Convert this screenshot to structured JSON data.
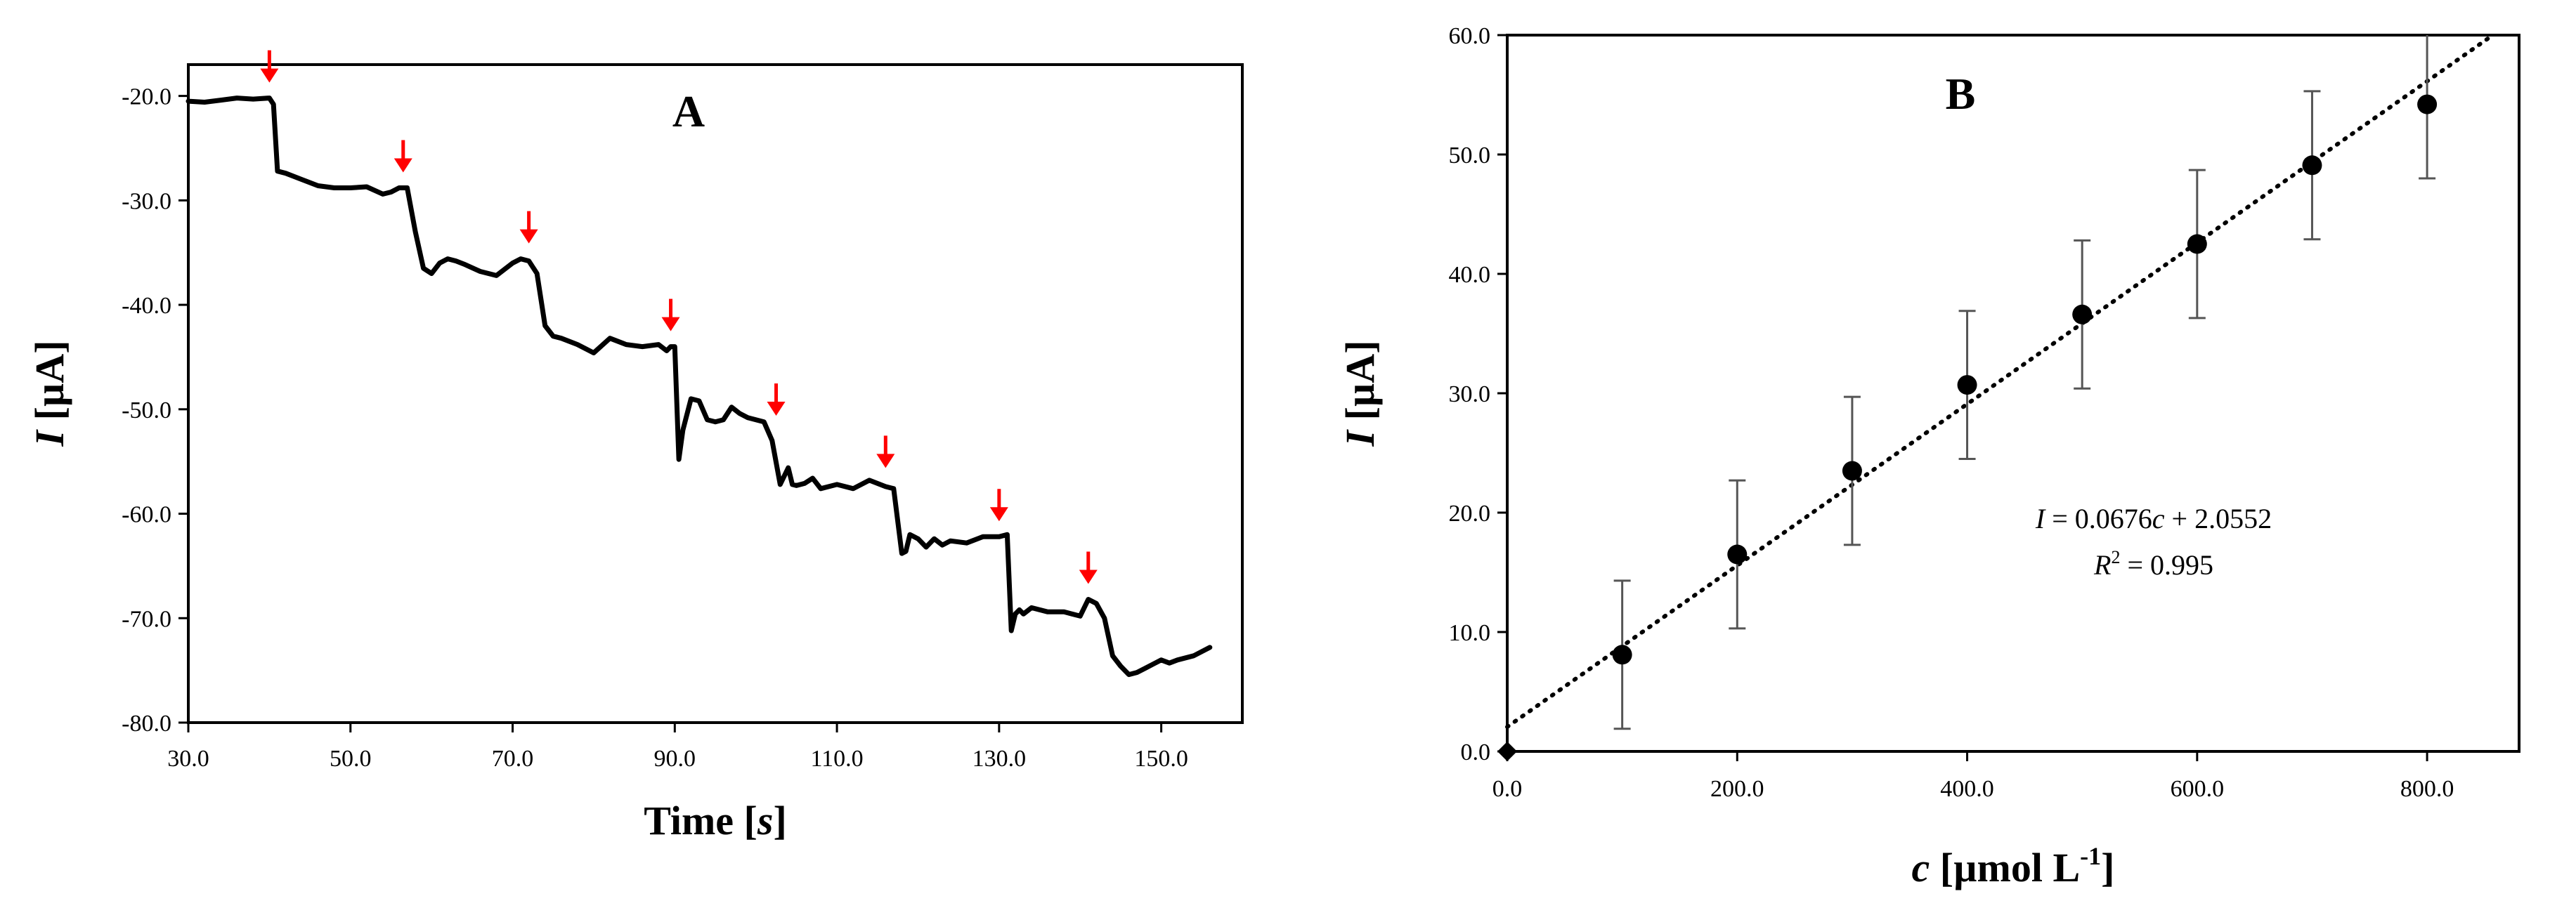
{
  "chart_data": [
    {
      "type": "line",
      "panel_label": "A",
      "xlabel": {
        "main": "Time [",
        "italic": "s",
        "tail": "]"
      },
      "ylabel": {
        "italic": "I",
        "tail": " [µA]"
      },
      "xlim": [
        30,
        160
      ],
      "ylim": [
        -80,
        -17
      ],
      "xticks": [
        "30.0",
        "50.0",
        "70.0",
        "90.0",
        "110.0",
        "130.0",
        "150.0"
      ],
      "yticks": [
        "-20.0",
        "-30.0",
        "-40.0",
        "-50.0",
        "-60.0",
        "-70.0",
        "-80.0"
      ],
      "line_color": "#000000",
      "arrow_color": "#ff0000",
      "series": [
        {
          "x": [
            30,
            32,
            34,
            36,
            38,
            40,
            40.5,
            41,
            42,
            44,
            46,
            48,
            50,
            52,
            54,
            55,
            56,
            57,
            58,
            59,
            60,
            61,
            62,
            63,
            64,
            66,
            68,
            70,
            71,
            72,
            73,
            74,
            75,
            76,
            78,
            80,
            82,
            84,
            86,
            88,
            89,
            89.5,
            90,
            90.5,
            91,
            92,
            93,
            94,
            95,
            96,
            97,
            98,
            99,
            100,
            101,
            102,
            103,
            104,
            104.5,
            105,
            106,
            107,
            108,
            110,
            112,
            114,
            116,
            117,
            118,
            118.5,
            119,
            120,
            121,
            122,
            123,
            124,
            126,
            128,
            130,
            131,
            131.5,
            132,
            132.5,
            133,
            134,
            136,
            138,
            140,
            141,
            142,
            143,
            144,
            145,
            146,
            147,
            148,
            149,
            150,
            151,
            152,
            154,
            156
          ],
          "y": [
            -20.5,
            -20.6,
            -20.4,
            -20.2,
            -20.3,
            -20.2,
            -20.8,
            -27.2,
            -27.4,
            -28.0,
            -28.6,
            -28.8,
            -28.8,
            -28.7,
            -29.4,
            -29.2,
            -28.8,
            -28.8,
            -33.0,
            -36.5,
            -37.0,
            -36.0,
            -35.6,
            -35.8,
            -36.1,
            -36.8,
            -37.2,
            -36.0,
            -35.6,
            -35.8,
            -37.0,
            -42.0,
            -43.0,
            -43.2,
            -43.8,
            -44.6,
            -43.2,
            -43.8,
            -44.0,
            -43.8,
            -44.4,
            -44.0,
            -44.0,
            -54.8,
            -52.0,
            -49.0,
            -49.2,
            -51.0,
            -51.2,
            -51.0,
            -49.8,
            -50.4,
            -50.8,
            -51.0,
            -51.2,
            -53.0,
            -57.2,
            -55.6,
            -57.2,
            -57.3,
            -57.1,
            -56.6,
            -57.6,
            -57.2,
            -57.6,
            -56.8,
            -57.4,
            -57.6,
            -63.8,
            -63.6,
            -62.0,
            -62.4,
            -63.2,
            -62.4,
            -63.0,
            -62.6,
            -62.8,
            -62.2,
            -62.2,
            -62.0,
            -71.2,
            -69.6,
            -69.2,
            -69.6,
            -69.0,
            -69.4,
            -69.4,
            -69.8,
            -68.2,
            -68.6,
            -70.0,
            -73.6,
            -74.6,
            -75.4,
            -75.2,
            -74.8,
            -74.4,
            -74.0,
            -74.3,
            -74.0,
            -73.6,
            -72.8
          ]
        }
      ],
      "arrows_x": [
        40,
        56.5,
        72,
        89.5,
        102.5,
        116,
        130,
        141
      ]
    },
    {
      "type": "scatter",
      "panel_label": "B",
      "xlabel": {
        "italic": "c",
        "tail": " [µmol L",
        "sup": "-1",
        "close": "]"
      },
      "ylabel": {
        "italic": "I",
        "tail": " [µA]"
      },
      "xlim": [
        0,
        880
      ],
      "ylim": [
        0,
        60
      ],
      "xticks": [
        "0.0",
        "200.0",
        "400.0",
        "600.0",
        "800.0"
      ],
      "yticks": [
        "0.0",
        "10.0",
        "20.0",
        "30.0",
        "40.0",
        "50.0",
        "60.0"
      ],
      "marker_color": "#000000",
      "errorbar_color": "#555555",
      "series": [
        {
          "x": [
            0,
            100,
            200,
            300,
            400,
            500,
            600,
            700,
            800
          ],
          "y": [
            0.0,
            8.1,
            16.5,
            23.5,
            30.7,
            36.6,
            42.5,
            49.1,
            54.2
          ],
          "err": [
            0,
            6.2,
            6.2,
            6.2,
            6.2,
            6.2,
            6.2,
            6.2,
            6.2
          ]
        }
      ],
      "trendline": {
        "slope": 0.0676,
        "intercept": 2.0552
      },
      "annotation": {
        "equation": {
          "italic_lhs": "I",
          "middle": " = 0.0676",
          "italic_var": "c",
          "tail": " + 2.0552"
        },
        "r2": {
          "italic_base": "R",
          "sup": "2",
          "tail": " = 0.995"
        }
      }
    }
  ]
}
